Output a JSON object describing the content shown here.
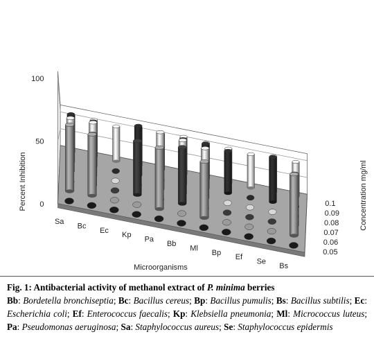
{
  "chart_data": {
    "type": "bar",
    "title": "",
    "xlabel": "Microorganisms",
    "ylabel": "Percent Inhibition",
    "zlabel": "Concentration mg/ml",
    "categories": [
      "Sa",
      "Bc",
      "Ec",
      "Kp",
      "Pa",
      "Bb",
      "Ml",
      "Bp",
      "Ef",
      "Se",
      "Bs"
    ],
    "yticks": [
      "0",
      "50",
      "100"
    ],
    "zticks": [
      "0.05",
      "0.06",
      "0.07",
      "0.08",
      "0.09",
      "0.1"
    ],
    "ylim": [
      0,
      100
    ],
    "series": [
      {
        "concentration": "0.05",
        "color": "#1a1a1a",
        "values": [
          0,
          0,
          0,
          0,
          0,
          0,
          0,
          0,
          0,
          0,
          0
        ]
      },
      {
        "concentration": "0.06",
        "color": "#9a9a9a",
        "values": [
          65,
          60,
          0,
          0,
          60,
          0,
          55,
          0,
          0,
          0,
          60
        ]
      },
      {
        "concentration": "0.07",
        "color": "#3a3a3a",
        "values": [
          0,
          60,
          0,
          62,
          0,
          65,
          0,
          0,
          0,
          0,
          60
        ]
      },
      {
        "concentration": "0.08",
        "color": "#d8d8d8",
        "values": [
          75,
          75,
          0,
          0,
          80,
          75,
          70,
          0,
          0,
          0,
          0
        ]
      },
      {
        "concentration": "0.09",
        "color": "#2a2a2a",
        "values": [
          85,
          80,
          0,
          88,
          0,
          80,
          80,
          75,
          0,
          80,
          0
        ]
      },
      {
        "concentration": "0.1",
        "color": "#e0e0e0",
        "values": [
          92,
          90,
          85,
          92,
          88,
          92,
          88,
          85,
          82,
          88,
          85
        ]
      }
    ]
  },
  "caption": {
    "fig_prefix": "Fig. 1: Antibacterial activity of methanol extract of ",
    "fig_species": "P. minima",
    "fig_suffix": " berries",
    "abbreviations": [
      {
        "code": "Bb",
        "name": "Bordetella bronchiseptia"
      },
      {
        "code": "Bc",
        "name": "Bacillus cereus"
      },
      {
        "code": "Bp",
        "name": "Bacillus pumulis"
      },
      {
        "code": "Bs",
        "name": "Bacillus subtilis"
      },
      {
        "code": "Ec",
        "name": "Escherichia coli"
      },
      {
        "code": "Ef",
        "name": "Enterococcus faecalis"
      },
      {
        "code": "Kp",
        "name": "Klebsiella pneumonia"
      },
      {
        "code": "Ml",
        "name": "Micrococcus luteus"
      },
      {
        "code": "Pa",
        "name": "Pseudomonas aeruginosa"
      },
      {
        "code": "Sa",
        "name": "Staphylococcus aureus"
      },
      {
        "code": "Se",
        "name": "Staphylococcus epidermis"
      }
    ]
  }
}
